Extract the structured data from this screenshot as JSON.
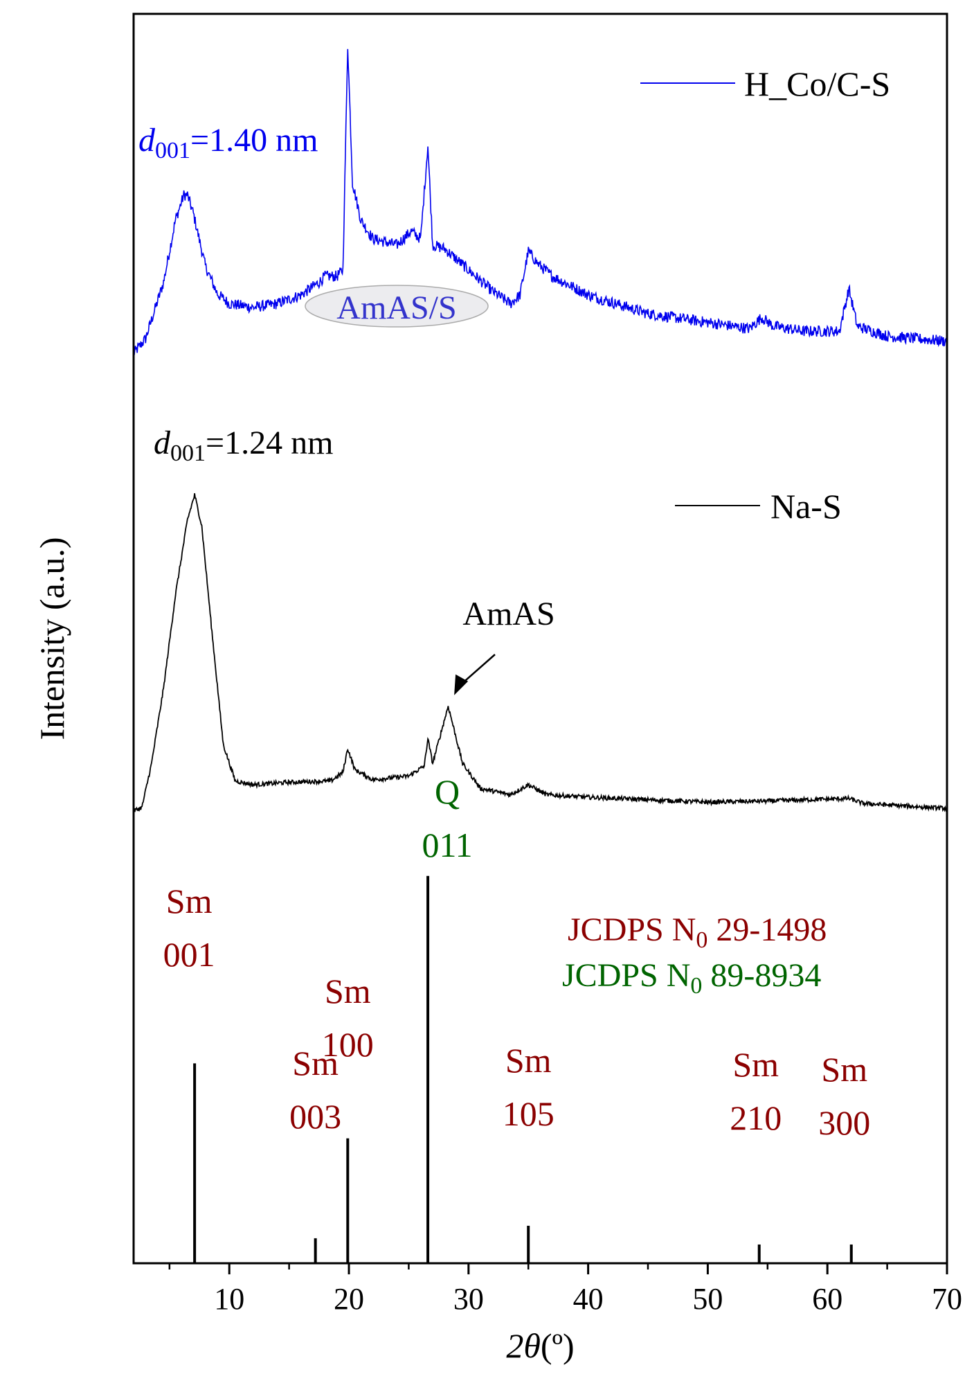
{
  "colors": {
    "hco": "#0000ee",
    "nas": "#000000",
    "sm": "#8b0000",
    "quartz": "#006400",
    "axis": "#000000"
  },
  "chart_data": {
    "type": "line",
    "xlabel_symbol": "2θ",
    "xlabel_unit": "(º)",
    "ylabel": "Intensity (a.u.)",
    "xlim": [
      2,
      70
    ],
    "xticks": [
      10,
      20,
      30,
      40,
      50,
      60,
      70
    ],
    "xtick_labels": [
      "10",
      "20",
      "30",
      "40",
      "50",
      "60",
      "70"
    ],
    "ylim": [
      0,
      100
    ],
    "series": [
      {
        "name": "H_Co/C-S",
        "color": "#0000ee",
        "peaks": [
          {
            "center": 6.5,
            "height": 14,
            "width": 1.4
          },
          {
            "center": 18.0,
            "height": 2,
            "width": 0.6
          },
          {
            "center": 19.9,
            "height": 26,
            "width": 0.18
          },
          {
            "center": 20.6,
            "height": 6,
            "width": 0.8
          },
          {
            "center": 25.2,
            "height": 3.0,
            "width": 0.3
          },
          {
            "center": 26.6,
            "height": 16,
            "width": 0.1
          },
          {
            "center": 35.0,
            "height": 6.5,
            "width": 0.6
          },
          {
            "center": 36.5,
            "height": 2,
            "width": 1.2
          },
          {
            "center": 54.5,
            "height": 1.8,
            "width": 1.0
          },
          {
            "center": 61.8,
            "height": 4.5,
            "width": 0.4
          }
        ],
        "points": [
          [
            2.0,
            72.8
          ],
          [
            3.0,
            74.0
          ],
          [
            4.5,
            78.5
          ],
          [
            5.5,
            83.5
          ],
          [
            6.2,
            85.5
          ],
          [
            6.5,
            85.5
          ],
          [
            7.0,
            84.0
          ],
          [
            8.0,
            79.8
          ],
          [
            9.0,
            77.6
          ],
          [
            10.0,
            76.8
          ],
          [
            12.0,
            76.5
          ],
          [
            14.0,
            76.8
          ],
          [
            16.0,
            77.5
          ],
          [
            17.5,
            78.5
          ],
          [
            18.0,
            79.0
          ],
          [
            19.0,
            79.0
          ],
          [
            19.5,
            79.5
          ],
          [
            19.9,
            97.5
          ],
          [
            20.3,
            86.5
          ],
          [
            21.0,
            83.5
          ],
          [
            22.0,
            82.0
          ],
          [
            24.0,
            81.5
          ],
          [
            25.2,
            82.6
          ],
          [
            26.0,
            82.0
          ],
          [
            26.6,
            89.5
          ],
          [
            27.0,
            81.5
          ],
          [
            28.0,
            81.2
          ],
          [
            30.0,
            79.5
          ],
          [
            32.0,
            77.8
          ],
          [
            33.5,
            76.8
          ],
          [
            34.3,
            77.5
          ],
          [
            35.0,
            81.0
          ],
          [
            35.8,
            80.0
          ],
          [
            37.0,
            79.0
          ],
          [
            40.0,
            77.5
          ],
          [
            45.0,
            76.0
          ],
          [
            50.0,
            75.3
          ],
          [
            53.5,
            74.8
          ],
          [
            54.5,
            75.7
          ],
          [
            55.5,
            75.0
          ],
          [
            58.0,
            74.6
          ],
          [
            61.0,
            74.6
          ],
          [
            61.8,
            78.0
          ],
          [
            62.5,
            75.0
          ],
          [
            65.0,
            74.2
          ],
          [
            70.0,
            73.8
          ]
        ]
      },
      {
        "name": "Na-S",
        "color": "#000000",
        "peaks": [
          {
            "center": 7.1,
            "height": 25,
            "width": 1.3
          },
          {
            "center": 19.9,
            "height": 2.5,
            "width": 0.3
          },
          {
            "center": 26.6,
            "height": 2.5,
            "width": 0.1
          },
          {
            "center": 28.3,
            "height": 5.5,
            "width": 0.8
          },
          {
            "center": 35.0,
            "height": 1.0,
            "width": 0.6
          },
          {
            "center": 61.8,
            "height": 0.5,
            "width": 0.4
          }
        ],
        "points": [
          [
            2.0,
            36.2
          ],
          [
            2.7,
            36.5
          ],
          [
            3.5,
            40.0
          ],
          [
            4.5,
            46.0
          ],
          [
            5.5,
            53.5
          ],
          [
            6.5,
            59.5
          ],
          [
            7.1,
            61.5
          ],
          [
            7.7,
            59.0
          ],
          [
            8.5,
            51.0
          ],
          [
            9.5,
            41.5
          ],
          [
            10.5,
            38.6
          ],
          [
            12.0,
            38.3
          ],
          [
            15.0,
            38.5
          ],
          [
            18.5,
            38.6
          ],
          [
            19.5,
            39.3
          ],
          [
            19.9,
            41.2
          ],
          [
            20.5,
            39.5
          ],
          [
            22.0,
            38.7
          ],
          [
            25.0,
            39.0
          ],
          [
            26.3,
            39.8
          ],
          [
            26.6,
            42.0
          ],
          [
            27.0,
            40.0
          ],
          [
            28.3,
            44.6
          ],
          [
            29.5,
            40.0
          ],
          [
            31.0,
            38.0
          ],
          [
            33.5,
            37.5
          ],
          [
            35.0,
            38.3
          ],
          [
            36.5,
            37.5
          ],
          [
            40.0,
            37.3
          ],
          [
            50.0,
            36.9
          ],
          [
            55.0,
            37.0
          ],
          [
            61.8,
            37.2
          ],
          [
            63.0,
            36.8
          ],
          [
            70.0,
            36.4
          ]
        ]
      }
    ],
    "reference_lines": [
      {
        "phase": "Sm",
        "hkl": "001",
        "x": 7.1,
        "height": 16.0
      },
      {
        "phase": "Sm",
        "hkl": "003",
        "x": 17.2,
        "height": 2.0
      },
      {
        "phase": "Sm",
        "hkl": "100",
        "x": 19.9,
        "height": 10.0
      },
      {
        "phase": "Q",
        "hkl": "011",
        "x": 26.6,
        "height": 31.0
      },
      {
        "phase": "Sm",
        "hkl": "105",
        "x": 35.0,
        "height": 3.0
      },
      {
        "phase": "Sm",
        "hkl": "210",
        "x": 54.3,
        "height": 1.5
      },
      {
        "phase": "Sm",
        "hkl": "300",
        "x": 62.0,
        "height": 1.5
      }
    ],
    "annotations": {
      "d_hco_sym": "d",
      "d_hco_sub": "001",
      "d_hco_val": "=1.40 nm",
      "d_nas_sym": "d",
      "d_nas_sub": "001",
      "d_nas_val": "=1.24 nm",
      "amas_s": "AmAS/S",
      "amas": "AmAS",
      "jcpds_sm_a": "JCDPS N",
      "jcpds_sm_sub": "0",
      "jcpds_sm_b": " 29-1498",
      "jcpds_q_a": "JCDPS N",
      "jcpds_q_sub": "0",
      "jcpds_q_b": " 89-8934"
    },
    "legend": [
      {
        "label": "H_Co/C-S",
        "color": "#0000ee"
      },
      {
        "label": "Na-S",
        "color": "#000000"
      }
    ]
  }
}
